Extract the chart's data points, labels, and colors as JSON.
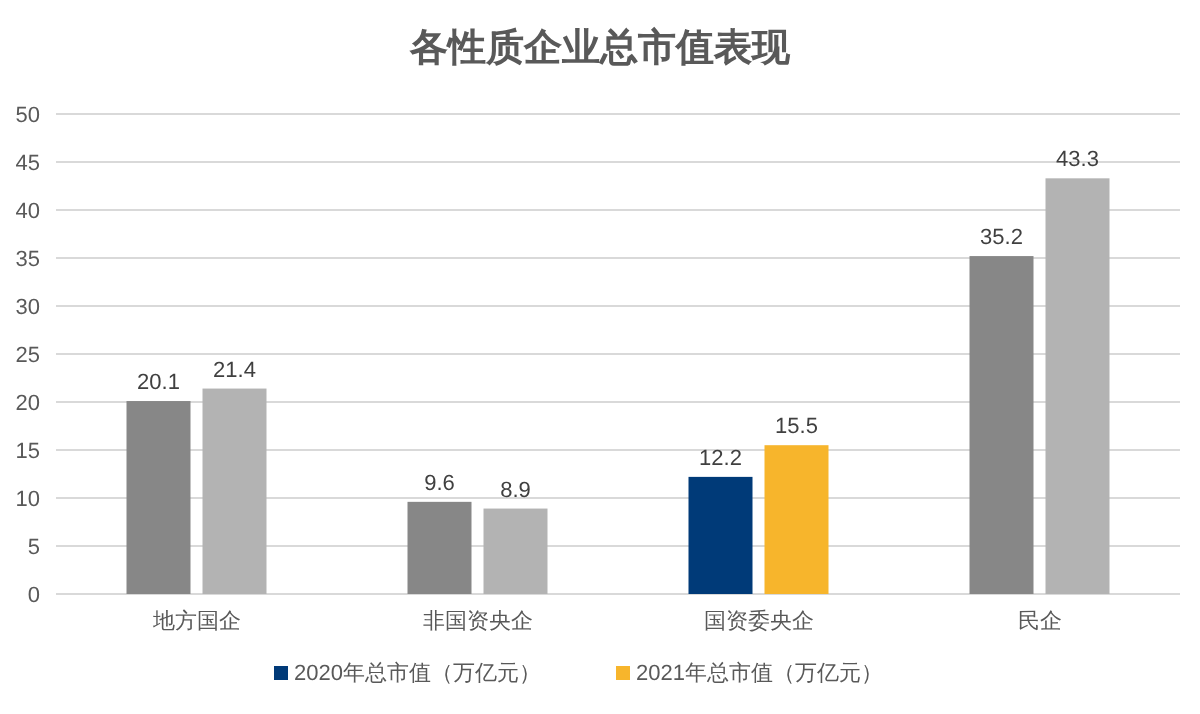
{
  "chart_data": {
    "type": "bar",
    "title": "各性质企业总市值表现",
    "categories": [
      "地方国企",
      "非国资央企",
      "国资委央企",
      "民企"
    ],
    "series": [
      {
        "name": "2020年总市值（万亿元）",
        "color": "#003a78",
        "values": [
          20.1,
          9.6,
          12.2,
          35.2
        ],
        "colors": [
          "#878787",
          "#878787",
          "#003a78",
          "#878787"
        ]
      },
      {
        "name": "2021年总市值（万亿元）",
        "color": "#f7b52c",
        "values": [
          21.4,
          8.9,
          15.5,
          43.3
        ],
        "colors": [
          "#b3b3b3",
          "#b3b3b3",
          "#f7b52c",
          "#b3b3b3"
        ]
      }
    ],
    "ylim": [
      0,
      50
    ],
    "yticks": [
      0,
      5,
      10,
      15,
      20,
      25,
      30,
      35,
      40,
      45,
      50
    ],
    "grid": "y",
    "legend": "bottom",
    "data_labels": true
  }
}
